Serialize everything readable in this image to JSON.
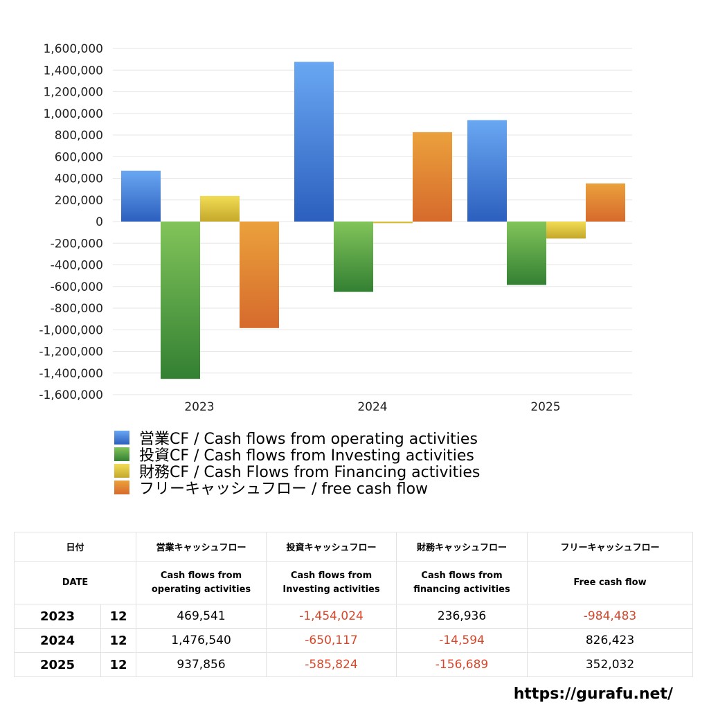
{
  "chart_data": {
    "type": "bar",
    "categories": [
      "2023",
      "2024",
      "2025"
    ],
    "ylim": [
      -1600000,
      1600000
    ],
    "y_ticks": [
      "1,600,000",
      "1,400,000",
      "1,200,000",
      "1,000,000",
      "800,000",
      "600,000",
      "400,000",
      "200,000",
      "0",
      "-200,000",
      "-400,000",
      "-600,000",
      "-800,000",
      "-1,000,000",
      "-1,200,000",
      "-1,400,000",
      "-1,600,000"
    ],
    "grid": true,
    "legend_position": "bottom",
    "series": [
      {
        "name": "営業CF / Cash flows from operating activities",
        "values": [
          469541,
          1476540,
          937856
        ],
        "color_top": "#69a7f2",
        "color_bottom": "#2c5fbe"
      },
      {
        "name": "投資CF / Cash flows from Investing activities",
        "values": [
          -1454024,
          -650117,
          -585824
        ],
        "color_top": "#82c45a",
        "color_bottom": "#338033"
      },
      {
        "name": "財務CF / Cash Flows from Financing activities",
        "values": [
          236936,
          -14594,
          -156689
        ],
        "color_top": "#f2dc55",
        "color_bottom": "#c4a82a"
      },
      {
        "name": "フリーキャッシュフロー / free cash flow",
        "values": [
          -984483,
          826423,
          352032
        ],
        "color_top": "#eba13c",
        "color_bottom": "#d66a2c"
      }
    ]
  },
  "table": {
    "header1": {
      "date": "日付",
      "op": "営業キャッシュフロー",
      "inv": "投資キャッシュフロー",
      "fin": "財務キャッシュフロー",
      "free": "フリーキャッシュフロー"
    },
    "header2": {
      "date": "DATE",
      "op_1": "Cash flows from",
      "op_2": "operating activities",
      "inv_1": "Cash flows from",
      "inv_2": "Investing activities",
      "fin_1": "Cash flows from",
      "fin_2": "financing activities",
      "free": "Free cash flow"
    },
    "rows": [
      {
        "year": "2023",
        "month": "12",
        "op": "469,541",
        "inv": "-1,454,024",
        "fin": "236,936",
        "free": "-984,483"
      },
      {
        "year": "2024",
        "month": "12",
        "op": "1,476,540",
        "inv": "-650,117",
        "fin": "-14,594",
        "free": "826,423"
      },
      {
        "year": "2025",
        "month": "12",
        "op": "937,856",
        "inv": "-585,824",
        "fin": "-156,689",
        "free": "352,032"
      }
    ],
    "negative_color": "#d6472b"
  },
  "source_url": "https://gurafu.net/"
}
